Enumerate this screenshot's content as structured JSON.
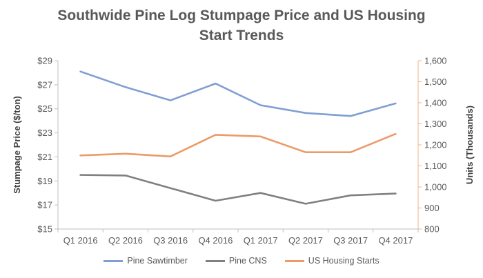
{
  "title_line1": "Southwide Pine Log Stumpage Price and US Housing",
  "title_line2": "Start Trends",
  "chart_data": {
    "type": "line",
    "categories": [
      "Q1 2016",
      "Q2 2016",
      "Q3 2016",
      "Q4 2016",
      "Q1 2017",
      "Q2 2017",
      "Q3 2017",
      "Q4 2017"
    ],
    "y_left": {
      "label": "Stumpage Price ($/ton)",
      "min": 15,
      "max": 29,
      "step": 2,
      "ticks": [
        "$15",
        "$17",
        "$19",
        "$21",
        "$23",
        "$25",
        "$27",
        "$29"
      ]
    },
    "y_right": {
      "label": "Units (Thousands)",
      "min": 800,
      "max": 1600,
      "step": 100,
      "ticks": [
        "800",
        "900",
        "1,000",
        "1,100",
        "1,200",
        "1,300",
        "1,400",
        "1,500",
        "1,600"
      ]
    },
    "series": [
      {
        "name": "Pine Sawtimber",
        "axis": "left",
        "color": "#7f9fd3",
        "values": [
          28.1,
          26.8,
          25.7,
          27.1,
          25.3,
          24.65,
          24.4,
          25.45
        ]
      },
      {
        "name": "Pine CNS",
        "axis": "left",
        "color": "#808080",
        "values": [
          19.5,
          19.45,
          18.4,
          17.35,
          18.0,
          17.1,
          17.8,
          17.95
        ]
      },
      {
        "name": "US Housing Starts",
        "axis": "right",
        "color": "#ec9a67",
        "values": [
          1150,
          1158,
          1145,
          1248,
          1240,
          1165,
          1165,
          1252
        ]
      }
    ],
    "legend_position": "bottom",
    "grid": false
  }
}
